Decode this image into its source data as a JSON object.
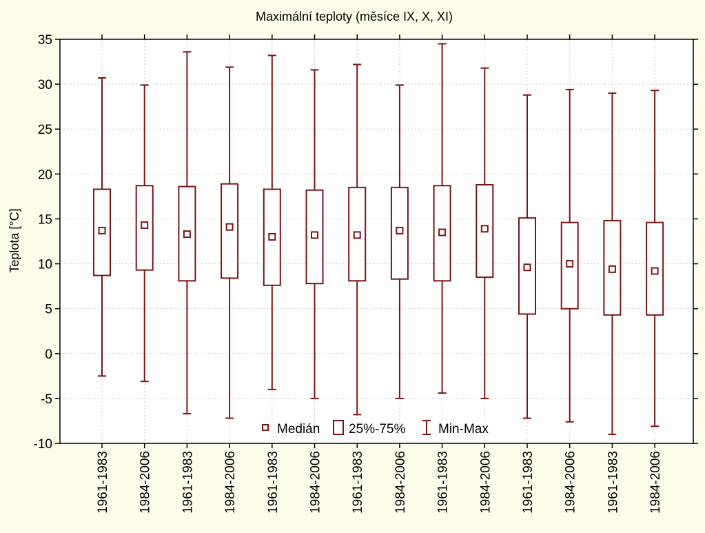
{
  "chart_data": {
    "type": "box",
    "title": "Maximální teploty (měsíce IX, X, XI)",
    "xlabel": "",
    "ylabel": "Teplota [°C]",
    "ylim": [
      -10,
      35
    ],
    "yticks": [
      "-10",
      "-5",
      "0",
      "5",
      "10",
      "15",
      "20",
      "25",
      "30",
      "35"
    ],
    "categories": [
      "1961-1983",
      "1984-2006",
      "1961-1983",
      "1984-2006",
      "1961-1983",
      "1984-2006",
      "1961-1983",
      "1984-2006",
      "1961-1983",
      "1984-2006",
      "1961-1983",
      "1984-2006",
      "1961-1983",
      "1984-2006"
    ],
    "series": [
      {
        "min": -2.5,
        "q1": 8.7,
        "median": 13.7,
        "q3": 18.3,
        "max": 30.7
      },
      {
        "min": -3.1,
        "q1": 9.3,
        "median": 14.3,
        "q3": 18.7,
        "max": 29.9
      },
      {
        "min": -6.7,
        "q1": 8.1,
        "median": 13.3,
        "q3": 18.6,
        "max": 33.6
      },
      {
        "min": -7.2,
        "q1": 8.4,
        "median": 14.1,
        "q3": 18.9,
        "max": 31.9
      },
      {
        "min": -4.0,
        "q1": 7.6,
        "median": 13.0,
        "q3": 18.3,
        "max": 33.2
      },
      {
        "min": -5.0,
        "q1": 7.8,
        "median": 13.2,
        "q3": 18.2,
        "max": 31.6
      },
      {
        "min": -6.8,
        "q1": 8.1,
        "median": 13.2,
        "q3": 18.5,
        "max": 32.2
      },
      {
        "min": -5.0,
        "q1": 8.3,
        "median": 13.7,
        "q3": 18.5,
        "max": 29.9
      },
      {
        "min": -4.4,
        "q1": 8.1,
        "median": 13.5,
        "q3": 18.7,
        "max": 34.5
      },
      {
        "min": -5.0,
        "q1": 8.5,
        "median": 13.9,
        "q3": 18.8,
        "max": 31.8
      },
      {
        "min": -7.2,
        "q1": 4.4,
        "median": 9.6,
        "q3": 15.1,
        "max": 28.8
      },
      {
        "min": -7.6,
        "q1": 5.0,
        "median": 10.0,
        "q3": 14.6,
        "max": 29.4
      },
      {
        "min": -9.0,
        "q1": 4.3,
        "median": 9.4,
        "q3": 14.8,
        "max": 29.0
      },
      {
        "min": -8.1,
        "q1": 4.3,
        "median": 9.2,
        "q3": 14.6,
        "max": 29.3
      }
    ],
    "legend": {
      "position": "bottom-center",
      "items": [
        "Medián",
        "25%-75%",
        "Min-Max"
      ]
    },
    "grid": true,
    "colors": {
      "box": "#7b1416",
      "background": "#fdfbe9",
      "plot_background": "#ffffff",
      "grid": "#c8c8c8"
    }
  }
}
